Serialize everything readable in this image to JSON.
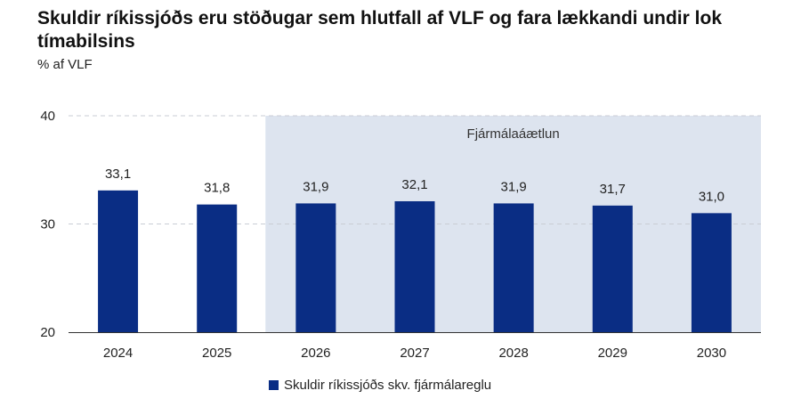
{
  "chart_data": {
    "type": "bar",
    "title": "Skuldir ríkissjóðs eru stöðugar sem hlutfall af VLF og fara lækkandi undir lok tímabilsins",
    "ylabel": "% af VLF",
    "xlabel": "",
    "categories": [
      "2024",
      "2025",
      "2026",
      "2027",
      "2028",
      "2029",
      "2030"
    ],
    "series": [
      {
        "name": "Skuldir ríkissjóðs skv. fjármálareglu",
        "values": [
          33.1,
          31.8,
          31.9,
          32.1,
          31.9,
          31.7,
          31.0
        ],
        "labels": [
          "33,1",
          "31,8",
          "31,9",
          "32,1",
          "31,9",
          "31,7",
          "31,0"
        ]
      }
    ],
    "ylim": [
      20,
      40
    ],
    "yticks": [
      20,
      30,
      40
    ],
    "ytick_labels": [
      "20",
      "30",
      "40"
    ],
    "grid": true,
    "legend_position": "bottom",
    "shaded_region": {
      "from": "2026",
      "to": "2030",
      "label": "Fjármálaáætlun"
    },
    "colors": {
      "bar": "#0a2d84",
      "band": "#dde4ef",
      "grid": "#c9cdd4"
    }
  }
}
